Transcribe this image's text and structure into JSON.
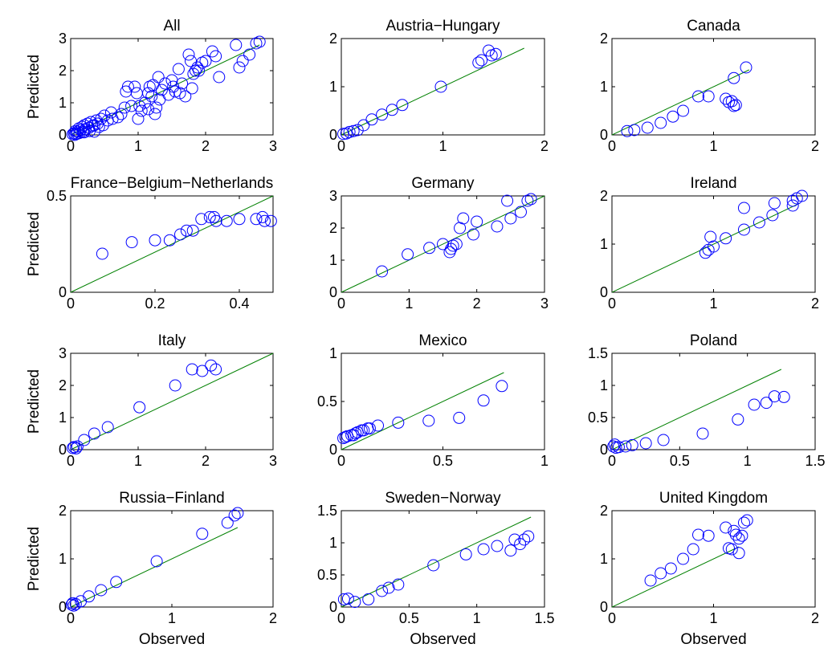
{
  "figure": {
    "marker_color": "#0000ff",
    "line_color": "#008000",
    "axis_color": "#000000"
  },
  "chart_data": [
    {
      "type": "scatter",
      "title": "All",
      "ylabel": "Predicted",
      "xlabel": "",
      "xlim": [
        0,
        3
      ],
      "ylim": [
        0,
        3
      ],
      "xticks": [
        "0",
        "1",
        "2",
        "3"
      ],
      "yticks": [
        "0",
        "1",
        "2",
        "3"
      ],
      "reference_line": [
        [
          0,
          0
        ],
        [
          2.8,
          2.8
        ]
      ],
      "points": [
        [
          0.05,
          0.05
        ],
        [
          0.07,
          0.12
        ],
        [
          0.08,
          0.03
        ],
        [
          0.1,
          0.1
        ],
        [
          0.12,
          0.2
        ],
        [
          0.13,
          0.06
        ],
        [
          0.15,
          0.15
        ],
        [
          0.17,
          0.25
        ],
        [
          0.18,
          0.1
        ],
        [
          0.2,
          0.3
        ],
        [
          0.22,
          0.18
        ],
        [
          0.25,
          0.35
        ],
        [
          0.27,
          0.22
        ],
        [
          0.3,
          0.4
        ],
        [
          0.32,
          0.28
        ],
        [
          0.35,
          0.3
        ],
        [
          0.38,
          0.45
        ],
        [
          0.4,
          0.35
        ],
        [
          0.42,
          0.25
        ],
        [
          0.45,
          0.5
        ],
        [
          0.48,
          0.3
        ],
        [
          0.5,
          0.6
        ],
        [
          0.55,
          0.45
        ],
        [
          0.6,
          0.7
        ],
        [
          0.62,
          0.5
        ],
        [
          0.7,
          0.55
        ],
        [
          0.75,
          0.65
        ],
        [
          0.8,
          0.85
        ],
        [
          0.82,
          1.35
        ],
        [
          0.85,
          1.5
        ],
        [
          0.9,
          0.9
        ],
        [
          0.95,
          1.5
        ],
        [
          0.98,
          1.3
        ],
        [
          1.0,
          0.5
        ],
        [
          1.02,
          0.9
        ],
        [
          1.05,
          0.75
        ],
        [
          1.1,
          1.0
        ],
        [
          1.15,
          1.3
        ],
        [
          1.15,
          0.8
        ],
        [
          1.17,
          1.5
        ],
        [
          1.2,
          1.2
        ],
        [
          1.22,
          1.55
        ],
        [
          1.25,
          0.65
        ],
        [
          1.27,
          0.85
        ],
        [
          1.3,
          1.8
        ],
        [
          1.32,
          1.1
        ],
        [
          1.35,
          1.4
        ],
        [
          1.4,
          1.6
        ],
        [
          1.45,
          1.25
        ],
        [
          1.5,
          1.7
        ],
        [
          1.52,
          1.5
        ],
        [
          1.55,
          1.35
        ],
        [
          1.6,
          2.05
        ],
        [
          1.62,
          1.3
        ],
        [
          1.65,
          1.6
        ],
        [
          1.7,
          1.2
        ],
        [
          1.75,
          2.5
        ],
        [
          1.78,
          2.3
        ],
        [
          1.8,
          1.45
        ],
        [
          1.82,
          1.9
        ],
        [
          1.85,
          2.0
        ],
        [
          1.88,
          2.1
        ],
        [
          1.9,
          2.0
        ],
        [
          1.95,
          2.25
        ],
        [
          2.0,
          2.3
        ],
        [
          2.1,
          2.6
        ],
        [
          2.15,
          2.45
        ],
        [
          2.2,
          1.8
        ],
        [
          2.45,
          2.8
        ],
        [
          2.5,
          2.1
        ],
        [
          2.55,
          2.3
        ],
        [
          2.65,
          2.5
        ],
        [
          2.75,
          2.85
        ],
        [
          2.8,
          2.9
        ],
        [
          0.03,
          0.02
        ],
        [
          0.06,
          0.0
        ],
        [
          0.1,
          0.04
        ],
        [
          0.2,
          0.08
        ],
        [
          0.28,
          0.12
        ],
        [
          0.35,
          0.1
        ]
      ]
    },
    {
      "type": "scatter",
      "title": "Austria−Hungary",
      "ylabel": "",
      "xlabel": "",
      "xlim": [
        0,
        2
      ],
      "ylim": [
        0,
        2
      ],
      "xticks": [
        "0",
        "1",
        "2"
      ],
      "yticks": [
        "0",
        "1",
        "2"
      ],
      "reference_line": [
        [
          0,
          0
        ],
        [
          1.8,
          1.8
        ]
      ],
      "points": [
        [
          0.02,
          0.02
        ],
        [
          0.05,
          0.03
        ],
        [
          0.08,
          0.06
        ],
        [
          0.12,
          0.08
        ],
        [
          0.16,
          0.1
        ],
        [
          0.22,
          0.2
        ],
        [
          0.3,
          0.32
        ],
        [
          0.4,
          0.42
        ],
        [
          0.5,
          0.52
        ],
        [
          0.6,
          0.62
        ],
        [
          0.98,
          1.0
        ],
        [
          1.35,
          1.5
        ],
        [
          1.38,
          1.55
        ],
        [
          1.45,
          1.75
        ],
        [
          1.48,
          1.65
        ],
        [
          1.52,
          1.68
        ]
      ]
    },
    {
      "type": "scatter",
      "title": "Canada",
      "ylabel": "",
      "xlabel": "",
      "xlim": [
        0,
        2
      ],
      "ylim": [
        0,
        2
      ],
      "xticks": [
        "0",
        "1",
        "2"
      ],
      "yticks": [
        "0",
        "1",
        "2"
      ],
      "reference_line": [
        [
          0,
          0
        ],
        [
          1.35,
          1.35
        ]
      ],
      "points": [
        [
          0.15,
          0.08
        ],
        [
          0.22,
          0.1
        ],
        [
          0.35,
          0.15
        ],
        [
          0.48,
          0.25
        ],
        [
          0.6,
          0.38
        ],
        [
          0.7,
          0.5
        ],
        [
          0.85,
          0.8
        ],
        [
          0.95,
          0.8
        ],
        [
          1.12,
          0.75
        ],
        [
          1.15,
          0.68
        ],
        [
          1.18,
          0.7
        ],
        [
          1.2,
          0.6
        ],
        [
          1.22,
          0.62
        ],
        [
          1.2,
          1.18
        ],
        [
          1.32,
          1.4
        ]
      ]
    },
    {
      "type": "scatter",
      "title": "France−Belgium−Netherlands",
      "ylabel": "Predicted",
      "xlabel": "",
      "xlim": [
        0,
        0.48
      ],
      "ylim": [
        0,
        0.5
      ],
      "xticks": [
        "0",
        "0.2",
        "0.4"
      ],
      "yticks": [
        "0",
        "0.5"
      ],
      "reference_line": [
        [
          0,
          0
        ],
        [
          0.48,
          0.5
        ]
      ],
      "points": [
        [
          0.075,
          0.2
        ],
        [
          0.145,
          0.26
        ],
        [
          0.2,
          0.27
        ],
        [
          0.235,
          0.27
        ],
        [
          0.26,
          0.3
        ],
        [
          0.275,
          0.32
        ],
        [
          0.29,
          0.32
        ],
        [
          0.31,
          0.38
        ],
        [
          0.33,
          0.39
        ],
        [
          0.34,
          0.39
        ],
        [
          0.345,
          0.37
        ],
        [
          0.37,
          0.37
        ],
        [
          0.4,
          0.38
        ],
        [
          0.44,
          0.38
        ],
        [
          0.455,
          0.39
        ],
        [
          0.46,
          0.37
        ],
        [
          0.475,
          0.37
        ]
      ]
    },
    {
      "type": "scatter",
      "title": "Germany",
      "ylabel": "",
      "xlabel": "",
      "xlim": [
        0,
        3
      ],
      "ylim": [
        0,
        3
      ],
      "xticks": [
        "0",
        "1",
        "2",
        "3"
      ],
      "yticks": [
        "0",
        "1",
        "2",
        "3"
      ],
      "reference_line": [
        [
          0,
          0
        ],
        [
          3,
          3
        ]
      ],
      "points": [
        [
          0.6,
          0.65
        ],
        [
          0.98,
          1.18
        ],
        [
          1.3,
          1.38
        ],
        [
          1.5,
          1.5
        ],
        [
          1.6,
          1.25
        ],
        [
          1.62,
          1.35
        ],
        [
          1.65,
          1.45
        ],
        [
          1.7,
          1.5
        ],
        [
          1.75,
          2.0
        ],
        [
          1.8,
          2.3
        ],
        [
          1.95,
          1.8
        ],
        [
          2.0,
          2.2
        ],
        [
          2.3,
          2.05
        ],
        [
          2.45,
          2.85
        ],
        [
          2.5,
          2.3
        ],
        [
          2.65,
          2.5
        ],
        [
          2.75,
          2.85
        ],
        [
          2.8,
          2.9
        ]
      ]
    },
    {
      "type": "scatter",
      "title": "Ireland",
      "ylabel": "",
      "xlabel": "",
      "xlim": [
        0,
        2
      ],
      "ylim": [
        0,
        2
      ],
      "xticks": [
        "0",
        "1",
        "2"
      ],
      "yticks": [
        "0",
        "1",
        "2"
      ],
      "reference_line": [
        [
          0,
          0
        ],
        [
          1.85,
          1.85
        ]
      ],
      "points": [
        [
          0.92,
          0.82
        ],
        [
          0.95,
          0.88
        ],
        [
          0.97,
          1.15
        ],
        [
          1.0,
          0.95
        ],
        [
          1.12,
          1.12
        ],
        [
          1.3,
          1.3
        ],
        [
          1.3,
          1.75
        ],
        [
          1.45,
          1.45
        ],
        [
          1.58,
          1.6
        ],
        [
          1.6,
          1.85
        ],
        [
          1.78,
          1.9
        ],
        [
          1.82,
          1.95
        ],
        [
          1.87,
          2.0
        ],
        [
          1.78,
          1.8
        ]
      ]
    },
    {
      "type": "scatter",
      "title": "Italy",
      "ylabel": "Predicted",
      "xlabel": "",
      "xlim": [
        0,
        3
      ],
      "ylim": [
        0,
        3
      ],
      "xticks": [
        "0",
        "1",
        "2",
        "3"
      ],
      "yticks": [
        "0",
        "1",
        "2",
        "3"
      ],
      "reference_line": [
        [
          0,
          0
        ],
        [
          3,
          3
        ]
      ],
      "points": [
        [
          0.03,
          0.05
        ],
        [
          0.05,
          0.08
        ],
        [
          0.08,
          0.04
        ],
        [
          0.1,
          0.1
        ],
        [
          0.2,
          0.3
        ],
        [
          0.35,
          0.5
        ],
        [
          0.55,
          0.7
        ],
        [
          1.02,
          1.32
        ],
        [
          1.55,
          2.0
        ],
        [
          1.8,
          2.5
        ],
        [
          1.95,
          2.45
        ],
        [
          2.08,
          2.62
        ],
        [
          2.15,
          2.5
        ]
      ]
    },
    {
      "type": "scatter",
      "title": "Mexico",
      "ylabel": "",
      "xlabel": "",
      "xlim": [
        0,
        1
      ],
      "ylim": [
        0,
        1
      ],
      "xticks": [
        "0",
        "0.5",
        "1"
      ],
      "yticks": [
        "0",
        "0.5",
        "1"
      ],
      "reference_line": [
        [
          0,
          0
        ],
        [
          0.8,
          0.8
        ]
      ],
      "points": [
        [
          0.01,
          0.12
        ],
        [
          0.02,
          0.13
        ],
        [
          0.03,
          0.14
        ],
        [
          0.05,
          0.15
        ],
        [
          0.06,
          0.15
        ],
        [
          0.07,
          0.17
        ],
        [
          0.08,
          0.18
        ],
        [
          0.1,
          0.2
        ],
        [
          0.11,
          0.2
        ],
        [
          0.13,
          0.22
        ],
        [
          0.14,
          0.22
        ],
        [
          0.18,
          0.25
        ],
        [
          0.28,
          0.28
        ],
        [
          0.43,
          0.3
        ],
        [
          0.58,
          0.33
        ],
        [
          0.7,
          0.51
        ],
        [
          0.79,
          0.66
        ]
      ]
    },
    {
      "type": "scatter",
      "title": "Poland",
      "ylabel": "",
      "xlabel": "",
      "xlim": [
        0,
        1.5
      ],
      "ylim": [
        0,
        1.5
      ],
      "xticks": [
        "0",
        "0.5",
        "1",
        "1.5"
      ],
      "yticks": [
        "0",
        "0.5",
        "1",
        "1.5"
      ],
      "reference_line": [
        [
          0,
          0
        ],
        [
          1.25,
          1.25
        ]
      ],
      "points": [
        [
          0.01,
          0.05
        ],
        [
          0.02,
          0.08
        ],
        [
          0.03,
          0.03
        ],
        [
          0.05,
          0.04
        ],
        [
          0.1,
          0.05
        ],
        [
          0.15,
          0.07
        ],
        [
          0.25,
          0.1
        ],
        [
          0.38,
          0.15
        ],
        [
          0.67,
          0.25
        ],
        [
          0.93,
          0.47
        ],
        [
          1.05,
          0.7
        ],
        [
          1.14,
          0.73
        ],
        [
          1.2,
          0.83
        ],
        [
          1.27,
          0.82
        ]
      ]
    },
    {
      "type": "scatter",
      "title": "Russia−Finland",
      "ylabel": "Predicted",
      "xlabel": "Observed",
      "xlim": [
        0,
        2
      ],
      "ylim": [
        0,
        2
      ],
      "xticks": [
        "0",
        "1",
        "2"
      ],
      "yticks": [
        "0",
        "1",
        "2"
      ],
      "reference_line": [
        [
          0,
          0
        ],
        [
          1.65,
          1.65
        ]
      ],
      "points": [
        [
          0.01,
          0.05
        ],
        [
          0.02,
          0.08
        ],
        [
          0.03,
          0.03
        ],
        [
          0.05,
          0.06
        ],
        [
          0.1,
          0.12
        ],
        [
          0.18,
          0.22
        ],
        [
          0.3,
          0.35
        ],
        [
          0.45,
          0.52
        ],
        [
          0.85,
          0.95
        ],
        [
          1.3,
          1.52
        ],
        [
          1.55,
          1.75
        ],
        [
          1.62,
          1.9
        ],
        [
          1.65,
          1.95
        ]
      ]
    },
    {
      "type": "scatter",
      "title": "Sweden−Norway",
      "ylabel": "",
      "xlabel": "Observed",
      "xlim": [
        0,
        1.5
      ],
      "ylim": [
        0,
        1.5
      ],
      "xticks": [
        "0",
        "0.5",
        "1",
        "1.5"
      ],
      "yticks": [
        "0",
        "0.5",
        "1",
        "1.5"
      ],
      "reference_line": [
        [
          0,
          0
        ],
        [
          1.4,
          1.4
        ]
      ],
      "points": [
        [
          0.02,
          0.12
        ],
        [
          0.05,
          0.13
        ],
        [
          0.1,
          0.08
        ],
        [
          0.2,
          0.12
        ],
        [
          0.3,
          0.25
        ],
        [
          0.35,
          0.3
        ],
        [
          0.42,
          0.35
        ],
        [
          0.68,
          0.65
        ],
        [
          0.92,
          0.82
        ],
        [
          1.05,
          0.9
        ],
        [
          1.15,
          0.95
        ],
        [
          1.25,
          0.88
        ],
        [
          1.28,
          1.05
        ],
        [
          1.32,
          0.98
        ],
        [
          1.35,
          1.05
        ],
        [
          1.38,
          1.1
        ]
      ]
    },
    {
      "type": "scatter",
      "title": "United Kingdom",
      "ylabel": "",
      "xlabel": "Observed",
      "xlim": [
        0,
        2
      ],
      "ylim": [
        0,
        2
      ],
      "xticks": [
        "0",
        "1",
        "2"
      ],
      "yticks": [
        "0",
        "1",
        "2"
      ],
      "reference_line": [
        [
          0,
          0
        ],
        [
          1.25,
          1.25
        ]
      ],
      "points": [
        [
          0.38,
          0.55
        ],
        [
          0.48,
          0.7
        ],
        [
          0.58,
          0.8
        ],
        [
          0.7,
          1.0
        ],
        [
          0.8,
          1.2
        ],
        [
          0.85,
          1.5
        ],
        [
          0.95,
          1.48
        ],
        [
          1.12,
          1.65
        ],
        [
          1.15,
          1.22
        ],
        [
          1.18,
          1.2
        ],
        [
          1.2,
          1.58
        ],
        [
          1.22,
          1.5
        ],
        [
          1.25,
          1.42
        ],
        [
          1.28,
          1.48
        ],
        [
          1.3,
          1.75
        ],
        [
          1.33,
          1.8
        ],
        [
          1.25,
          1.12
        ]
      ]
    }
  ]
}
